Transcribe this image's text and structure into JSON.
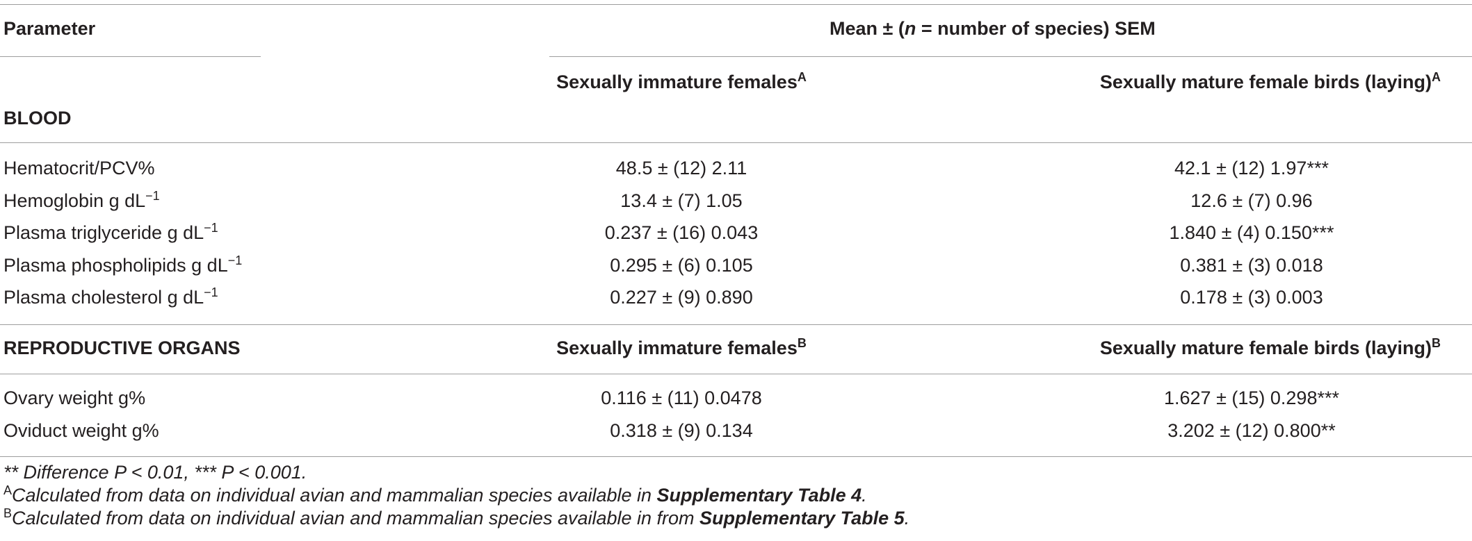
{
  "table": {
    "header": {
      "param_label": "Parameter",
      "mean_pre": "Mean ± (",
      "mean_n": "n",
      "mean_post": " = number of species) SEM"
    },
    "groups": [
      {
        "name": "BLOOD",
        "col2": "Sexually immature females",
        "col2_sup": "A",
        "col3": "Sexually mature female birds (laying)",
        "col3_sup": "A",
        "rows": [
          {
            "param": "Hematocrit/PCV%",
            "unit_sup": "",
            "c2": "48.5 ± (12) 2.11",
            "c3": "42.1 ± (12) 1.97***"
          },
          {
            "param": "Hemoglobin g dL",
            "unit_sup": "−1",
            "c2": "13.4 ± (7) 1.05",
            "c3": "12.6 ± (7) 0.96"
          },
          {
            "param": "Plasma triglyceride g dL",
            "unit_sup": "−1",
            "c2": "0.237 ± (16) 0.043",
            "c3": "1.840 ± (4) 0.150***"
          },
          {
            "param": "Plasma phospholipids g dL",
            "unit_sup": "−1",
            "c2": "0.295 ± (6) 0.105",
            "c3": "0.381 ± (3) 0.018"
          },
          {
            "param": "Plasma cholesterol g dL",
            "unit_sup": "−1",
            "c2": "0.227 ± (9) 0.890",
            "c3": "0.178 ± (3) 0.003"
          }
        ]
      },
      {
        "name": "REPRODUCTIVE ORGANS",
        "col2": "Sexually immature females",
        "col2_sup": "B",
        "col3": "Sexually mature female birds (laying)",
        "col3_sup": "B",
        "rows": [
          {
            "param": "Ovary weight g%",
            "c2": "0.116 ± (11) 0.0478",
            "c3": "1.627 ± (15) 0.298***"
          },
          {
            "param": "Oviduct weight g%",
            "c2": "0.318 ± (9) 0.134",
            "c3": "3.202 ± (12) 0.800**"
          }
        ]
      }
    ]
  },
  "footnotes": {
    "sig": "** Difference P < 0.01, *** P < 0.001.",
    "a_sup": "A",
    "a_text": "Calculated from data on individual avian and mammalian species available in ",
    "a_bold": "Supplementary Table 4",
    "a_end": ".",
    "b_sup": "B",
    "b_text": "Calculated from data on individual avian and mammalian species available in from ",
    "b_bold": "Supplementary Table 5",
    "b_end": "."
  }
}
